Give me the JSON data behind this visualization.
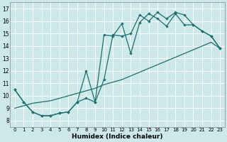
{
  "xlabel": "Humidex (Indice chaleur)",
  "xlim": [
    -0.5,
    23.5
  ],
  "ylim": [
    7.5,
    17.5
  ],
  "xticks": [
    0,
    1,
    2,
    3,
    4,
    5,
    6,
    7,
    8,
    9,
    10,
    11,
    12,
    13,
    14,
    15,
    16,
    17,
    18,
    19,
    20,
    21,
    22,
    23
  ],
  "yticks": [
    8,
    9,
    10,
    11,
    12,
    13,
    14,
    15,
    16,
    17
  ],
  "bg_color": "#cde8e8",
  "grid_color": "#b8d8d8",
  "line_color": "#1a7070",
  "line1_x": [
    0,
    1,
    2,
    3,
    4,
    5,
    6,
    7,
    8,
    9,
    10,
    11,
    12,
    13,
    14,
    15,
    16,
    17,
    18,
    19,
    20,
    21,
    22,
    23
  ],
  "line1_y": [
    10.5,
    9.5,
    8.7,
    8.4,
    8.4,
    8.6,
    8.7,
    9.5,
    9.8,
    9.5,
    14.9,
    14.8,
    15.8,
    13.4,
    15.9,
    16.6,
    16.2,
    15.6,
    16.6,
    15.7,
    15.7,
    15.2,
    14.8,
    13.8
  ],
  "line2_x": [
    0,
    1,
    2,
    3,
    4,
    5,
    6,
    7,
    8,
    9,
    10,
    11,
    12,
    13,
    14,
    15,
    16,
    17,
    18,
    19,
    20,
    21,
    22,
    23
  ],
  "line2_y": [
    10.5,
    9.5,
    8.7,
    8.4,
    8.4,
    8.6,
    8.7,
    9.5,
    12.0,
    9.5,
    11.3,
    14.9,
    14.8,
    15.0,
    16.5,
    16.0,
    16.7,
    16.2,
    16.7,
    16.5,
    15.7,
    15.2,
    14.8,
    13.8
  ],
  "line3_x": [
    0,
    1,
    2,
    3,
    4,
    5,
    6,
    7,
    8,
    9,
    10,
    11,
    12,
    13,
    14,
    15,
    16,
    17,
    18,
    19,
    20,
    21,
    22,
    23
  ],
  "line3_y": [
    9.0,
    9.2,
    9.4,
    9.5,
    9.6,
    9.8,
    10.0,
    10.2,
    10.4,
    10.6,
    10.9,
    11.1,
    11.3,
    11.6,
    11.9,
    12.2,
    12.5,
    12.8,
    13.1,
    13.4,
    13.7,
    14.0,
    14.3,
    13.8
  ]
}
